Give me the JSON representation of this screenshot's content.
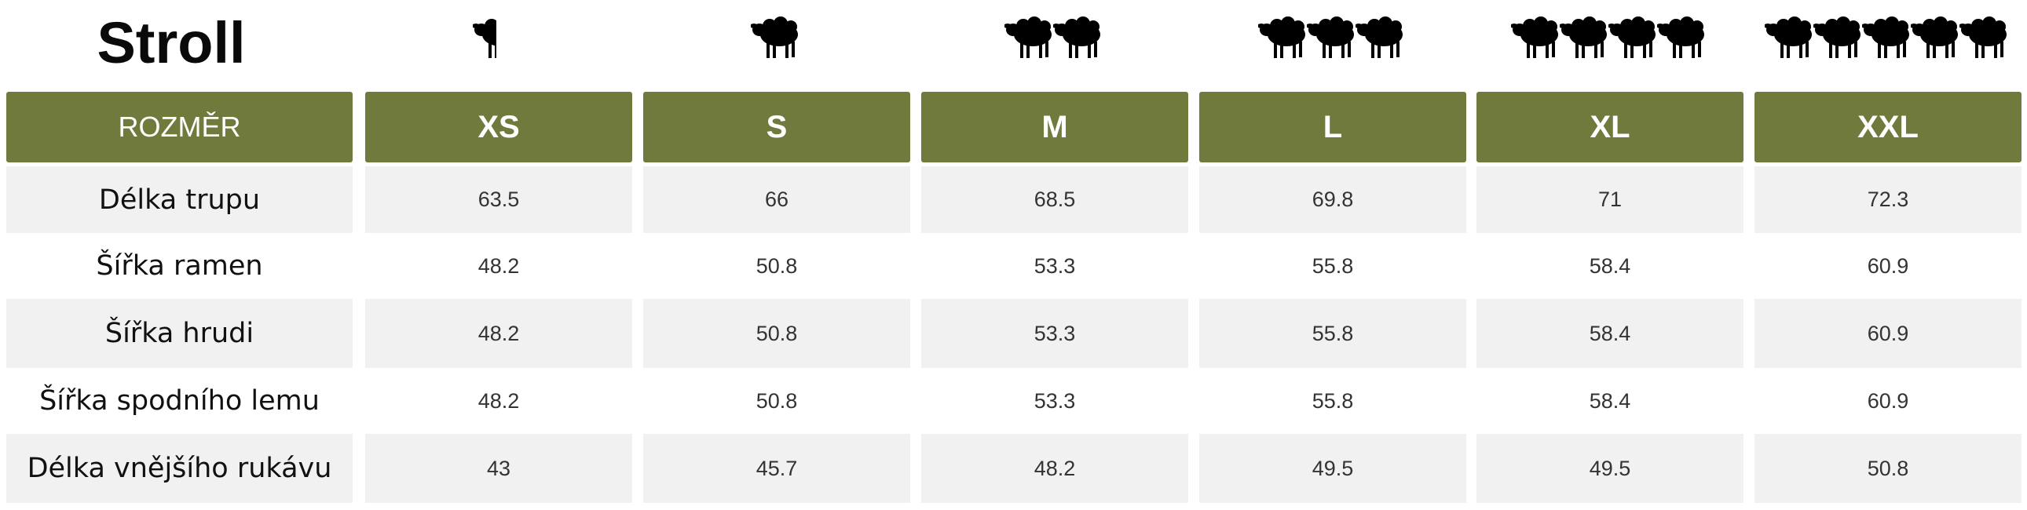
{
  "title": "Stroll",
  "header_label": "ROZMĚR",
  "colors": {
    "header_bg": "#6f7a3c",
    "row_shade": "#f1f1f2",
    "icon": "#000000"
  },
  "icon_name": "sheep-icon",
  "sizes": [
    {
      "label": "XS",
      "icon_count": 0.5
    },
    {
      "label": "S",
      "icon_count": 1
    },
    {
      "label": "M",
      "icon_count": 2
    },
    {
      "label": "L",
      "icon_count": 3
    },
    {
      "label": "XL",
      "icon_count": 4
    },
    {
      "label": "XXL",
      "icon_count": 5
    }
  ],
  "rows": [
    {
      "label": "Délka trupu",
      "values": [
        "63.5",
        "66",
        "68.5",
        "69.8",
        "71",
        "72.3"
      ]
    },
    {
      "label": "Šířka ramen",
      "values": [
        "48.2",
        "50.8",
        "53.3",
        "55.8",
        "58.4",
        "60.9"
      ]
    },
    {
      "label": "Šířka hrudi",
      "values": [
        "48.2",
        "50.8",
        "53.3",
        "55.8",
        "58.4",
        "60.9"
      ]
    },
    {
      "label": "Šířka spodního lemu",
      "values": [
        "48.2",
        "50.8",
        "53.3",
        "55.8",
        "58.4",
        "60.9"
      ]
    },
    {
      "label": "Délka vnějšího rukávu",
      "values": [
        "43",
        "45.7",
        "48.2",
        "49.5",
        "49.5",
        "50.8"
      ]
    }
  ]
}
